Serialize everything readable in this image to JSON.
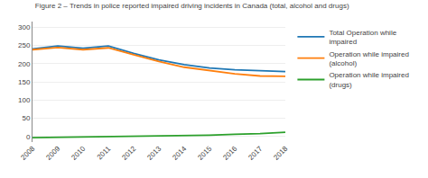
{
  "chart_data": {
    "type": "line",
    "title": "Figure 2 – Trends in police reported impaired driving incidents in Canada (total, alcohol and drugs)",
    "x": [
      2008,
      2009,
      2010,
      2011,
      2012,
      2013,
      2014,
      2015,
      2016,
      2017,
      2018
    ],
    "series": [
      {
        "name": "Total Operation while\nimpaired",
        "values": [
          240,
          248,
          242,
          248,
          228,
          210,
          197,
          188,
          183,
          180,
          178
        ]
      },
      {
        "name": "Operation while impaired\n(alcohol)",
        "values": [
          238,
          244,
          238,
          243,
          224,
          206,
          190,
          181,
          172,
          166,
          165
        ]
      },
      {
        "name": "Operation while impaired\n(drugs)",
        "values": [
          -3,
          -2,
          -1,
          -1,
          0,
          2,
          3,
          4,
          6,
          8,
          12
        ]
      }
    ],
    "xlim": [
      2008,
      2018
    ],
    "xticks": [
      2008,
      2009,
      2010,
      2011,
      2012,
      2013,
      2014,
      2015,
      2016,
      2017,
      2018
    ],
    "ylim": [
      -15,
      315
    ],
    "yticks": [
      0,
      50,
      100,
      150,
      200,
      250,
      300
    ],
    "grid": true,
    "legend": "right"
  }
}
